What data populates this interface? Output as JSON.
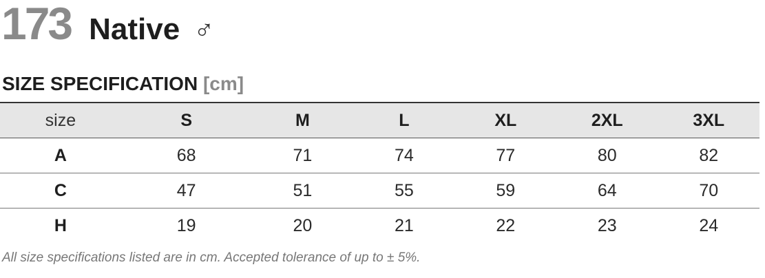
{
  "header": {
    "number": "173",
    "name": "Native",
    "symbol": "♂"
  },
  "section": {
    "title": "SIZE SPECIFICATION",
    "unit": "[cm]"
  },
  "table": {
    "columns": [
      "size",
      "S",
      "M",
      "L",
      "XL",
      "2XL",
      "3XL"
    ],
    "rows": [
      [
        "A",
        68,
        71,
        74,
        77,
        80,
        82
      ],
      [
        "C",
        47,
        51,
        55,
        59,
        64,
        70
      ],
      [
        "H",
        19,
        20,
        21,
        22,
        23,
        24
      ]
    ]
  },
  "footnote": "All size specifications listed are in cm. Accepted tolerance of up to ± 5%."
}
